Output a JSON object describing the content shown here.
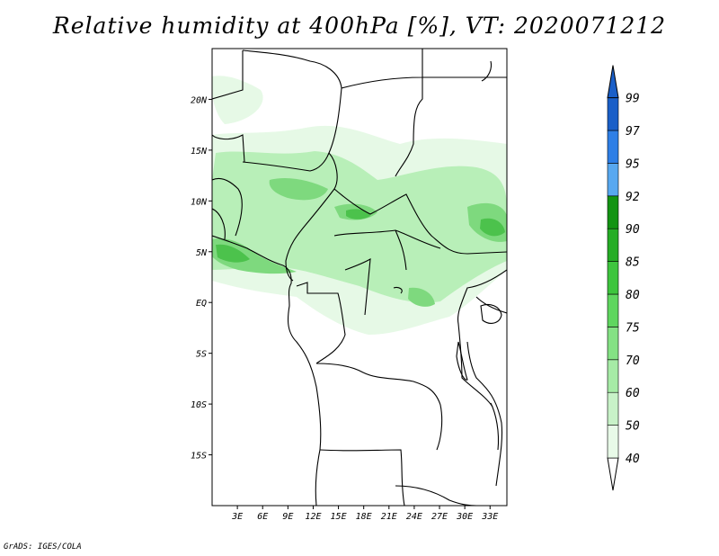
{
  "title": "Relative humidity at 400hPa [%], VT: 2020071212",
  "credit": "GrADS: IGES/COLA",
  "map": {
    "lon_range": [
      0,
      35
    ],
    "lat_range": [
      -20,
      25
    ],
    "x_ticks": [
      {
        "value": 3,
        "label": "3E"
      },
      {
        "value": 6,
        "label": "6E"
      },
      {
        "value": 9,
        "label": "9E"
      },
      {
        "value": 12,
        "label": "12E"
      },
      {
        "value": 15,
        "label": "15E"
      },
      {
        "value": 18,
        "label": "18E"
      },
      {
        "value": 21,
        "label": "21E"
      },
      {
        "value": 24,
        "label": "24E"
      },
      {
        "value": 27,
        "label": "27E"
      },
      {
        "value": 30,
        "label": "30E"
      },
      {
        "value": 33,
        "label": "33E"
      }
    ],
    "y_ticks": [
      {
        "value": 20,
        "label": "20N"
      },
      {
        "value": 15,
        "label": "15N"
      },
      {
        "value": 10,
        "label": "10N"
      },
      {
        "value": 5,
        "label": "5N"
      },
      {
        "value": 0,
        "label": "EQ"
      },
      {
        "value": -5,
        "label": "5S"
      },
      {
        "value": -10,
        "label": "10S"
      },
      {
        "value": -15,
        "label": "15S"
      }
    ]
  },
  "colorbar": {
    "levels": [
      "40",
      "50",
      "60",
      "70",
      "75",
      "80",
      "85",
      "90",
      "92",
      "95",
      "97",
      "99"
    ],
    "colors": [
      "#ffffff",
      "#e8fae8",
      "#c8f2c8",
      "#a6eba6",
      "#84e184",
      "#5fd65f",
      "#3ec53e",
      "#26ad26",
      "#139413",
      "#58a8f0",
      "#2e7fe6",
      "#1a5fc8"
    ]
  },
  "colors": {
    "rh_light": "#e6f9e6",
    "rh_mid": "#b8efb8",
    "rh_high": "#7ed97e",
    "rh_top": "#4cc24c"
  }
}
